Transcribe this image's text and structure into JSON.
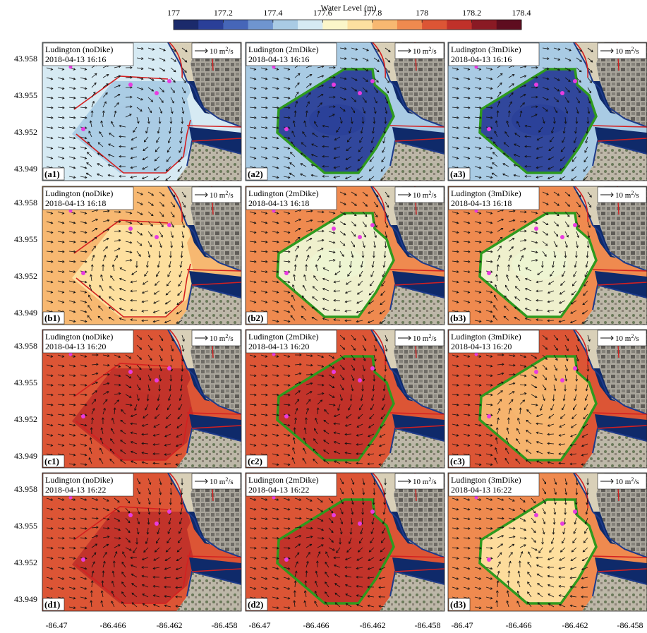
{
  "colorbar": {
    "title": "Water Level (m)",
    "ticks": [
      "177",
      "177.2",
      "177.4",
      "177.6",
      "177.8",
      "178",
      "178.2",
      "178.4"
    ],
    "colors": [
      "#1b2a6b",
      "#2a3f98",
      "#4666b8",
      "#6f95cf",
      "#a9cbe4",
      "#d6eaf3",
      "#fbf6c9",
      "#fde0a0",
      "#f7b871",
      "#ef8a4f",
      "#dc5535",
      "#c0312a",
      "#8a1a24",
      "#5e0d1f"
    ]
  },
  "y_axis_ticks": [
    "43.958",
    "43.955",
    "43.952",
    "43.949"
  ],
  "x_axis_ticks": [
    "-86.47",
    "-86.466",
    "-86.462",
    "-86.458"
  ],
  "scale_label": "10 m",
  "scale_sup": "2",
  "scale_unit": "/s",
  "panels": [
    {
      "id": "a1",
      "label": "(a1)",
      "title": "Ludington (noDike)",
      "time": "2018-04-13 16:16",
      "row": 0,
      "col": 0,
      "dike": false,
      "bg": "#d6eaf3",
      "region": "#a9cbe4"
    },
    {
      "id": "a2",
      "label": "(a2)",
      "title": "Ludington (2mDike)",
      "time": "2018-04-13 16:16",
      "row": 0,
      "col": 1,
      "dike": true,
      "bg": "#a9cbe4",
      "region": "#2a3f98"
    },
    {
      "id": "a3",
      "label": "(a3)",
      "title": "Ludington (3mDike)",
      "time": "2018-04-13 16:16",
      "row": 0,
      "col": 2,
      "dike": true,
      "bg": "#a9cbe4",
      "region": "#2a3f98"
    },
    {
      "id": "b1",
      "label": "(b1)",
      "title": "Ludington (noDike)",
      "time": "2018-04-13 16:18",
      "row": 1,
      "col": 0,
      "dike": false,
      "bg": "#f7b871",
      "region": "#fde0a0"
    },
    {
      "id": "b2",
      "label": "(b2)",
      "title": "Ludington (2mDike)",
      "time": "2018-04-13 16:18",
      "row": 1,
      "col": 1,
      "dike": true,
      "bg": "#ef8a4f",
      "region": "#eef6d4"
    },
    {
      "id": "b3",
      "label": "(b3)",
      "title": "Ludington (3mDike)",
      "time": "2018-04-13 16:18",
      "row": 1,
      "col": 2,
      "dike": true,
      "bg": "#ef8a4f",
      "region": "#eef6d4"
    },
    {
      "id": "c1",
      "label": "(c1)",
      "title": "Ludington (noDike)",
      "time": "2018-04-13 16:20",
      "row": 2,
      "col": 0,
      "dike": false,
      "bg": "#dc5535",
      "region": "#c0312a"
    },
    {
      "id": "c2",
      "label": "(c2)",
      "title": "Ludington (2mDike)",
      "time": "2018-04-13 16:20",
      "row": 2,
      "col": 1,
      "dike": true,
      "bg": "#dc5535",
      "region": "#c0312a"
    },
    {
      "id": "c3",
      "label": "(c3)",
      "title": "Ludington (3mDike)",
      "time": "2018-04-13 16:20",
      "row": 2,
      "col": 2,
      "dike": true,
      "bg": "#dc5535",
      "region": "#f7b871"
    },
    {
      "id": "d1",
      "label": "(d1)",
      "title": "Ludington (noDike)",
      "time": "2018-04-13 16:22",
      "row": 3,
      "col": 0,
      "dike": false,
      "bg": "#dc5535",
      "region": "#c0312a"
    },
    {
      "id": "d2",
      "label": "(d2)",
      "title": "Ludington (2mDike)",
      "time": "2018-04-13 16:22",
      "row": 3,
      "col": 1,
      "dike": true,
      "bg": "#dc5535",
      "region": "#c0312a"
    },
    {
      "id": "d3",
      "label": "(d3)",
      "title": "Ludington (3mDike)",
      "time": "2018-04-13 16:22",
      "row": 3,
      "col": 2,
      "dike": true,
      "bg": "#ef8a4f",
      "region": "#fde0a0"
    }
  ],
  "colors": {
    "dike": "#2e9a1e",
    "outline": "#d42020",
    "shoreline": "#1d3a8a",
    "marker": "#e83ce0",
    "land": "#b9b3a6",
    "deep_water": "#0f2a6a"
  }
}
